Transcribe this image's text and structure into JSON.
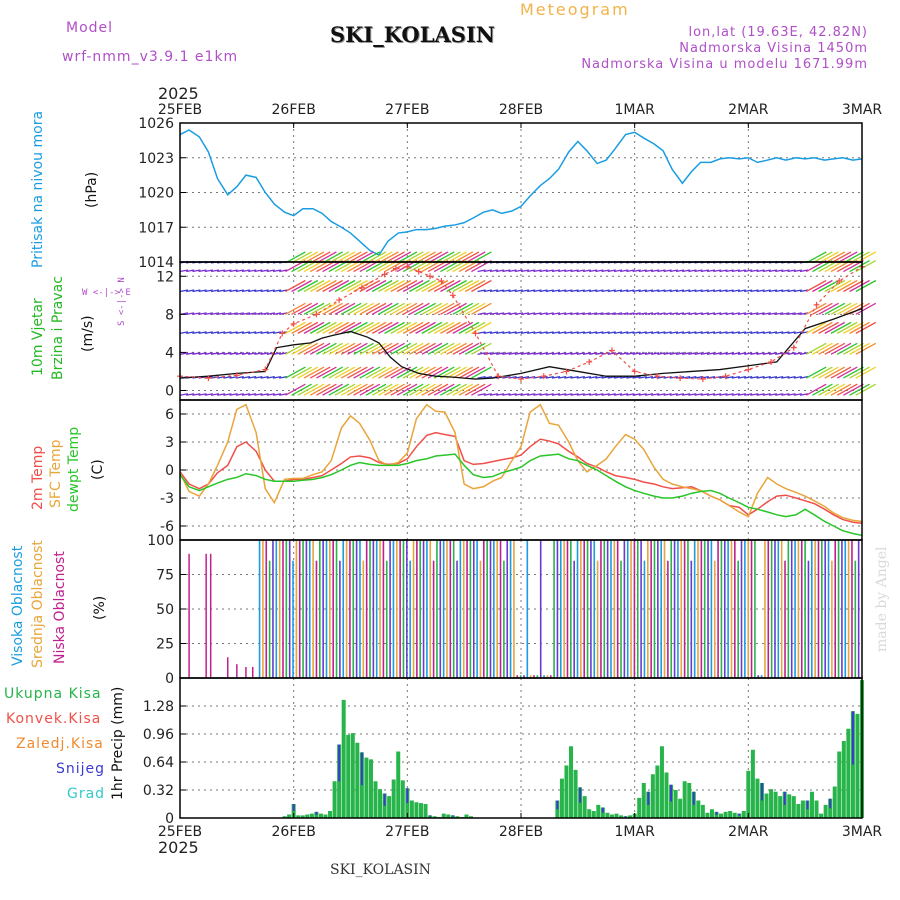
{
  "header": {
    "model_label": "Model",
    "model_name": "wrf-nmm_v3.9.1 e1km",
    "station": "SKI_KOLASIN",
    "title": "Meteogram",
    "lonlat": "lon,lat (19.63E, 42.82N)",
    "altitude": "Nadmorska Visina 1450m",
    "model_altitude": "Nadmorska Visina u modelu 1671.99m",
    "year_top": "2025",
    "year_bottom": "2025",
    "footer_station": "SKI_KOLASIN",
    "watermark": "made by Angel"
  },
  "panel_labels": {
    "pressure": [
      "Pritisak na nivou mora"
    ],
    "pressure_unit": "(hPa)",
    "wind": [
      "10m Vjetar",
      "Brzina i Pravac"
    ],
    "wind_unit": "(m/s)",
    "wind_compass": "W <-|-> E",
    "wind_compass_v": "S <-|-> N",
    "temp": [
      "2m Temp",
      "SFC Temp",
      "dewpt Temp"
    ],
    "temp_unit": "(C)",
    "cloud": [
      "Visoka Oblacnost",
      "Srednja Oblacnost",
      "Niska Oblacnost"
    ],
    "cloud_unit": "(%)",
    "precip": [
      "Ukupna Kisa",
      "Konvek.Kisa",
      "Zaledj.Kisa",
      "Snijeg",
      "Grad"
    ],
    "precip_unit": "1hr Precip (mm)"
  },
  "colors": {
    "pressure": "#1a9de0",
    "temp2m": "#f0504a",
    "sfc": "#e8a53a",
    "dewpt": "#29c529",
    "cloud_high": "#1a9de0",
    "cloud_mid": "#e8a53a",
    "cloud_low": "#c0208f",
    "precip_total": "#27b44a",
    "precip_conv": "#f0504a",
    "precip_freez": "#f08a30",
    "precip_snow": "#3a3ad0",
    "precip_hail": "#33c9c9",
    "wind_label": "#25b825",
    "wind_compass": "#b04fc8"
  },
  "x_axis": {
    "ticks": [
      "25FEB",
      "26FEB",
      "27FEB",
      "28FEB",
      "1MAR",
      "2MAR",
      "3MAR"
    ]
  },
  "chart_data": [
    {
      "type": "line",
      "name": "pressure",
      "ylim": [
        1014,
        1026
      ],
      "yticks": [
        "1026",
        "1023",
        "1020",
        "1017",
        "1014"
      ],
      "x_days": [
        0,
        0.08,
        0.17,
        0.25,
        0.33,
        0.42,
        0.5,
        0.58,
        0.67,
        0.75,
        0.83,
        0.92,
        1.0,
        1.08,
        1.17,
        1.25,
        1.33,
        1.42,
        1.5,
        1.58,
        1.67,
        1.75,
        1.83,
        1.92,
        2.0,
        2.08,
        2.17,
        2.25,
        2.33,
        2.42,
        2.5,
        2.58,
        2.67,
        2.75,
        2.83,
        2.92,
        3.0,
        3.08,
        3.17,
        3.25,
        3.33,
        3.42,
        3.5,
        3.58,
        3.67,
        3.75,
        3.83,
        3.92,
        4.0,
        4.08,
        4.17,
        4.25,
        4.33,
        4.42,
        4.5,
        4.58,
        4.67,
        4.75,
        4.83,
        4.92,
        5.0,
        5.08,
        5.17,
        5.25,
        5.33,
        5.42,
        5.5,
        5.58,
        5.67,
        5.75,
        5.83,
        5.92,
        6.0
      ],
      "values": [
        1025.0,
        1025.4,
        1024.8,
        1023.5,
        1021.2,
        1019.8,
        1020.5,
        1021.5,
        1021.3,
        1020.0,
        1019.0,
        1018.3,
        1018.0,
        1018.6,
        1018.6,
        1018.2,
        1017.5,
        1017.0,
        1016.5,
        1015.8,
        1015.0,
        1014.6,
        1015.8,
        1016.5,
        1016.6,
        1016.8,
        1016.8,
        1016.9,
        1017.1,
        1017.2,
        1017.4,
        1017.8,
        1018.3,
        1018.5,
        1018.2,
        1018.4,
        1018.8,
        1019.7,
        1020.6,
        1021.2,
        1022.0,
        1023.5,
        1024.4,
        1023.6,
        1022.5,
        1022.8,
        1023.8,
        1025.0,
        1025.2,
        1024.7,
        1024.2,
        1023.6,
        1022.0,
        1020.8,
        1021.8,
        1022.6,
        1022.6,
        1022.9,
        1023.0,
        1022.9,
        1023.0,
        1022.6,
        1022.8,
        1023.0,
        1022.8,
        1023.0,
        1022.9,
        1023.0,
        1022.8,
        1022.9,
        1023.0,
        1022.8,
        1022.9
      ]
    },
    {
      "type": "line",
      "name": "wind",
      "ylim": [
        -1,
        13.5
      ],
      "yticks": [
        "12",
        "8",
        "4",
        "0"
      ],
      "series": [
        {
          "name": "",
          "x_days": [
            0,
            0.25,
            0.5,
            0.75,
            0.85,
            1.0,
            1.15,
            1.25,
            1.35,
            1.5,
            1.65,
            1.75,
            1.85,
            1.95,
            2.1,
            2.25,
            2.4,
            2.5,
            2.6,
            2.75,
            3.0,
            3.25,
            3.5,
            3.75,
            4.0,
            4.25,
            4.5,
            4.75,
            5.0,
            5.25,
            5.5,
            5.75,
            6.0
          ],
          "values": [
            1.3,
            1.5,
            1.8,
            2.0,
            4.5,
            4.8,
            5.0,
            5.5,
            5.8,
            6.2,
            5.6,
            5.0,
            3.5,
            2.5,
            1.8,
            1.5,
            1.4,
            1.3,
            1.2,
            1.3,
            1.8,
            2.5,
            2.0,
            1.5,
            1.5,
            1.8,
            2.0,
            2.2,
            2.6,
            3.0,
            6.5,
            7.5,
            8.6
          ]
        },
        {
          "name": "",
          "x_days": [
            0,
            0.25,
            0.5,
            0.75,
            0.9,
            1.0,
            1.2,
            1.4,
            1.6,
            1.8,
            1.9,
            2.0,
            2.1,
            2.2,
            2.3,
            2.4,
            2.6,
            2.8,
            3.0,
            3.2,
            3.4,
            3.6,
            3.8,
            4.0,
            4.2,
            4.4,
            4.6,
            4.8,
            5.0,
            5.2,
            5.4,
            5.6,
            5.8,
            6.0
          ],
          "values": [
            1.5,
            1.3,
            1.6,
            2.2,
            6.0,
            7.0,
            8.0,
            9.5,
            10.8,
            12.2,
            12.8,
            13.0,
            12.5,
            12.0,
            11.5,
            10.0,
            6.0,
            1.5,
            1.2,
            1.5,
            2.0,
            3.0,
            4.2,
            2.0,
            1.5,
            1.3,
            1.2,
            1.5,
            2.2,
            3.0,
            4.5,
            9.0,
            11.5,
            13.0
          ]
        }
      ]
    },
    {
      "type": "line",
      "name": "temperature",
      "ylim": [
        -7.5,
        7.5
      ],
      "yticks": [
        "6",
        "3",
        "0",
        "-3",
        "-6"
      ],
      "x_days": [
        0,
        0.08,
        0.17,
        0.25,
        0.33,
        0.42,
        0.5,
        0.58,
        0.67,
        0.75,
        0.83,
        0.92,
        1.0,
        1.08,
        1.17,
        1.25,
        1.33,
        1.42,
        1.5,
        1.58,
        1.67,
        1.75,
        1.83,
        1.92,
        2.0,
        2.08,
        2.17,
        2.25,
        2.33,
        2.42,
        2.5,
        2.58,
        2.67,
        2.75,
        2.83,
        2.92,
        3.0,
        3.08,
        3.17,
        3.25,
        3.33,
        3.42,
        3.5,
        3.58,
        3.67,
        3.75,
        3.83,
        3.92,
        4.0,
        4.08,
        4.17,
        4.25,
        4.33,
        4.42,
        4.5,
        4.58,
        4.67,
        4.75,
        4.83,
        4.92,
        5.0,
        5.08,
        5.17,
        5.25,
        5.33,
        5.42,
        5.5,
        5.58,
        5.67,
        5.75,
        5.83,
        5.92,
        6.0
      ],
      "series": [
        {
          "name": "",
          "values": [
            -0.2,
            -1.5,
            -2.0,
            -1.5,
            -0.3,
            0.5,
            2.5,
            3.0,
            2.0,
            0.0,
            -1.2,
            -1.2,
            -1.0,
            -1.0,
            -0.8,
            -0.6,
            0.0,
            0.7,
            1.4,
            1.5,
            1.3,
            0.8,
            0.6,
            0.7,
            1.2,
            2.5,
            3.7,
            4.0,
            3.8,
            3.6,
            1.0,
            0.6,
            0.7,
            0.9,
            1.1,
            1.3,
            1.6,
            2.5,
            3.3,
            3.1,
            2.8,
            2.0,
            1.4,
            0.7,
            0.3,
            -0.2,
            -0.6,
            -0.8,
            -1.0,
            -1.3,
            -1.5,
            -1.8,
            -2.0,
            -1.9,
            -1.8,
            -2.2,
            -2.8,
            -3.2,
            -3.8,
            -4.0,
            -4.8,
            -4.2,
            -3.4,
            -2.8,
            -2.7,
            -3.0,
            -3.3,
            -3.6,
            -4.2,
            -4.8,
            -5.3,
            -5.6,
            -5.7
          ]
        },
        {
          "name": "",
          "values": [
            -0.3,
            -2.3,
            -2.8,
            -1.5,
            0.5,
            3.0,
            6.5,
            7.0,
            4.0,
            -2.0,
            -3.5,
            -1.0,
            -0.9,
            -0.9,
            -0.5,
            -0.2,
            1.0,
            4.5,
            5.8,
            5.0,
            3.2,
            1.0,
            0.5,
            0.8,
            1.8,
            5.5,
            7.0,
            6.3,
            6.2,
            4.0,
            -1.5,
            -2.0,
            -1.8,
            -1.2,
            -0.8,
            1.0,
            2.5,
            6.2,
            7.0,
            5.0,
            4.8,
            3.0,
            1.0,
            -0.2,
            0.5,
            1.2,
            2.5,
            3.8,
            3.3,
            2.2,
            0.3,
            -1.0,
            -1.5,
            -1.8,
            -2.0,
            -2.2,
            -2.8,
            -3.2,
            -3.8,
            -4.5,
            -5.0,
            -2.5,
            -0.8,
            -1.5,
            -2.0,
            -2.4,
            -2.8,
            -3.3,
            -3.9,
            -4.6,
            -5.1,
            -5.4,
            -5.5
          ]
        },
        {
          "name": "",
          "values": [
            -0.5,
            -1.8,
            -2.2,
            -1.8,
            -1.4,
            -1.0,
            -0.8,
            -0.4,
            -0.6,
            -1.0,
            -1.2,
            -1.2,
            -1.2,
            -1.1,
            -1.0,
            -0.8,
            -0.5,
            0.0,
            0.5,
            0.8,
            0.6,
            0.5,
            0.5,
            0.5,
            0.7,
            1.0,
            1.2,
            1.5,
            1.6,
            1.7,
            0.5,
            -0.5,
            -0.8,
            -0.7,
            -0.3,
            0.0,
            0.3,
            1.0,
            1.5,
            1.6,
            1.7,
            1.2,
            1.0,
            0.5,
            0.0,
            -0.6,
            -1.2,
            -1.8,
            -2.2,
            -2.5,
            -2.8,
            -3.0,
            -3.0,
            -2.8,
            -2.5,
            -2.3,
            -2.2,
            -2.5,
            -3.0,
            -3.5,
            -4.0,
            -4.2,
            -4.5,
            -4.8,
            -5.0,
            -4.8,
            -4.2,
            -4.8,
            -5.5,
            -6.0,
            -6.5,
            -6.8,
            -7.0
          ]
        }
      ]
    },
    {
      "type": "bar",
      "name": "cloud",
      "ylim": [
        0,
        100
      ],
      "yticks": [
        "100",
        "75",
        "50",
        "25",
        "0"
      ]
    },
    {
      "type": "bar",
      "name": "precip",
      "ylim": [
        0,
        1.6
      ],
      "yticks": [
        "1.28",
        "0.96",
        "0.64",
        "0.32",
        "0"
      ],
      "x_days": [
        0.92,
        0.96,
        1.0,
        1.04,
        1.08,
        1.12,
        1.16,
        1.2,
        1.24,
        1.28,
        1.32,
        1.36,
        1.4,
        1.44,
        1.48,
        1.52,
        1.56,
        1.6,
        1.64,
        1.68,
        1.72,
        1.76,
        1.8,
        1.84,
        1.88,
        1.92,
        1.96,
        2.0,
        2.04,
        2.08,
        2.12,
        2.16,
        2.2,
        2.24,
        2.28,
        2.32,
        2.36,
        2.4,
        2.44,
        2.48,
        2.52,
        2.56,
        3.32,
        3.36,
        3.4,
        3.44,
        3.48,
        3.52,
        3.56,
        3.6,
        3.64,
        3.68,
        3.72,
        3.76,
        3.8,
        3.84,
        3.88,
        3.92,
        3.96,
        4.0,
        4.04,
        4.08,
        4.12,
        4.16,
        4.2,
        4.24,
        4.28,
        4.32,
        4.36,
        4.4,
        4.44,
        4.48,
        4.52,
        4.56,
        4.6,
        4.64,
        4.68,
        4.72,
        4.76,
        4.8,
        4.84,
        4.88,
        4.92,
        4.96,
        5.0,
        5.04,
        5.08,
        5.12,
        5.16,
        5.2,
        5.24,
        5.28,
        5.32,
        5.36,
        5.4,
        5.44,
        5.48,
        5.52,
        5.56,
        5.6,
        5.64,
        5.68,
        5.72,
        5.76,
        5.8,
        5.84,
        5.88,
        5.92,
        5.96,
        6.0
      ],
      "values": [
        0.02,
        0.04,
        0.16,
        0.03,
        0.03,
        0.04,
        0.05,
        0.07,
        0.05,
        0.04,
        0.08,
        0.42,
        0.84,
        1.35,
        0.95,
        0.97,
        0.86,
        0.75,
        0.69,
        0.67,
        0.42,
        0.33,
        0.28,
        0.25,
        0.44,
        0.76,
        0.43,
        0.34,
        0.2,
        0.18,
        0.17,
        0.16,
        0.03,
        0.02,
        0.01,
        0.05,
        0.04,
        0.03,
        0.02,
        0.01,
        0.04,
        0.02,
        0.2,
        0.45,
        0.6,
        0.82,
        0.55,
        0.35,
        0.25,
        0.1,
        0.08,
        0.15,
        0.12,
        0.06,
        0.04,
        0.05,
        0.03,
        0.02,
        0.03,
        0.05,
        0.23,
        0.4,
        0.3,
        0.5,
        0.6,
        0.82,
        0.52,
        0.38,
        0.32,
        0.22,
        0.42,
        0.4,
        0.3,
        0.2,
        0.15,
        0.06,
        0.1,
        0.07,
        0.05,
        0.07,
        0.08,
        0.06,
        0.05,
        0.08,
        0.54,
        0.78,
        0.45,
        0.4,
        0.28,
        0.33,
        0.3,
        0.25,
        0.3,
        0.27,
        0.25,
        0.16,
        0.2,
        0.2,
        0.3,
        0.2,
        0.05,
        0.15,
        0.22,
        0.36,
        0.76,
        0.88,
        1.02,
        1.22,
        1.19,
        1.6
      ]
    }
  ]
}
